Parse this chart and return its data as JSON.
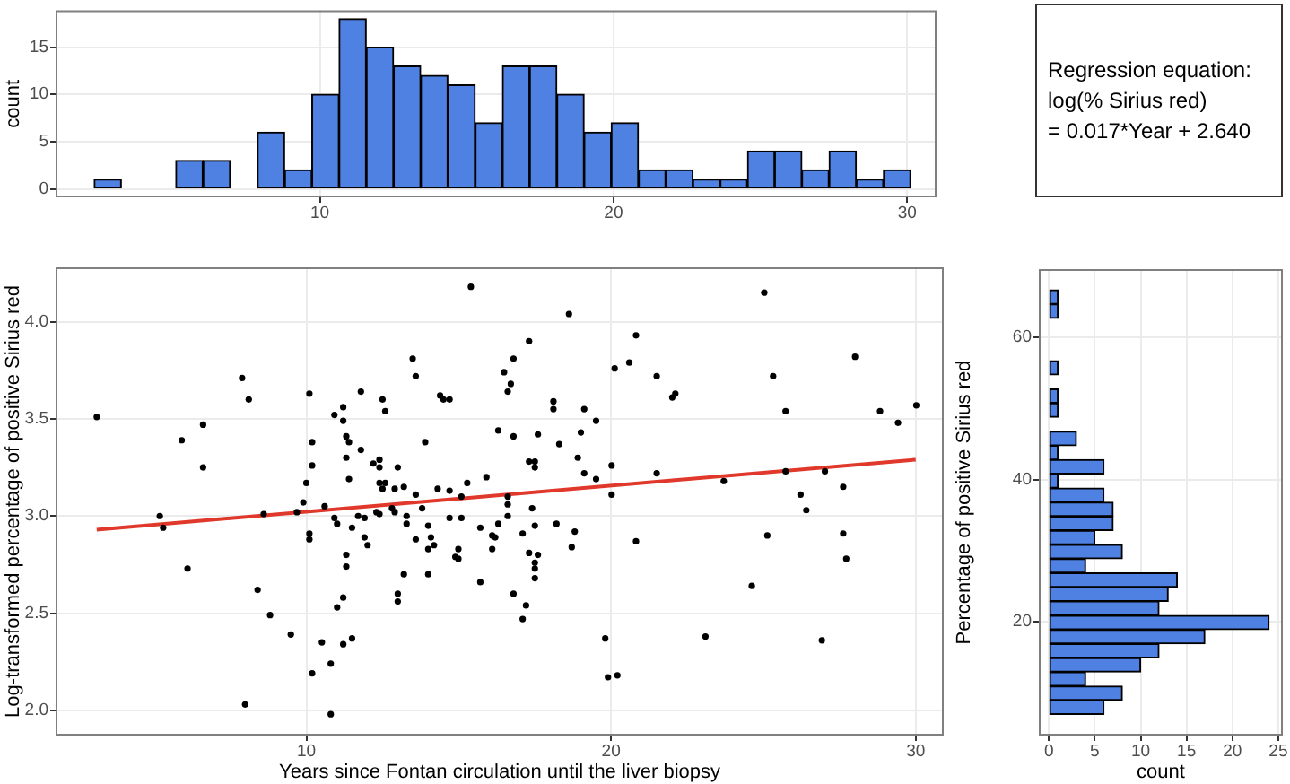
{
  "chart_data": [
    {
      "type": "histogram",
      "ylabel": "count",
      "color": "#4f81e3",
      "grid": true,
      "xlim": [
        1.0,
        31.0
      ],
      "xticks": [
        10,
        20,
        30
      ],
      "ylim": [
        -0.9,
        18.9
      ],
      "yticks": [
        0,
        5,
        10,
        15
      ],
      "bins": [
        2.31,
        3.24,
        4.16,
        5.09,
        6.02,
        6.95,
        7.87,
        8.8,
        9.73,
        10.65,
        11.58,
        12.51,
        13.43,
        14.36,
        15.29,
        16.22,
        17.14,
        18.07,
        19.0,
        19.92,
        20.85,
        21.78,
        22.7,
        23.63,
        24.56,
        25.49,
        26.41,
        27.34,
        28.27,
        29.19,
        30.12
      ],
      "values": [
        1,
        0,
        0,
        3,
        3,
        0,
        6,
        2,
        10,
        18,
        15,
        13,
        12,
        11,
        7,
        13,
        13,
        10,
        6,
        7,
        2,
        2,
        1,
        1,
        4,
        4,
        2,
        4,
        1,
        2
      ]
    },
    {
      "type": "other",
      "annotations": [
        "Regression equation:",
        "log(% Sirius red)",
        "= 0.017*Year + 2.640"
      ]
    },
    {
      "type": "scatter",
      "xlabel": "Years since Fontan circulation until the liver biopsy",
      "ylabel": "Log-transformed percentage of positive Sirius red",
      "grid": true,
      "marker": "circle",
      "xlim": [
        1.77,
        30.92
      ],
      "xticks": [
        10,
        20,
        30
      ],
      "ylim": [
        1.87,
        4.28
      ],
      "yticks": [
        {
          "value": 2,
          "label": "2.0"
        },
        {
          "value": 2.5,
          "label": "2.5"
        },
        {
          "value": 3,
          "label": "3.0"
        },
        {
          "value": 3.5,
          "label": "3.5"
        },
        {
          "value": 4,
          "label": "4.0"
        }
      ],
      "series": [
        {
          "type": "scatter",
          "color": "#000000",
          "x": [
            3.12,
            5.19,
            5.3,
            5.91,
            6.61,
            6.61,
            6.1,
            7.89,
            8.11,
            7.99,
            8.4,
            8.6,
            8.81,
            9.49,
            9.69,
            9.9,
            10.0,
            10.1,
            10.1,
            10.1,
            10.19,
            10.19,
            10.19,
            10.51,
            10.6,
            10.8,
            10.8,
            10.92,
            10.92,
            11.01,
            11.01,
            11.21,
            11.21,
            11.21,
            11.21,
            11.31,
            11.4,
            11.31,
            11.31,
            11.31,
            11.4,
            11.5,
            11.5,
            11.7,
            11.79,
            11.79,
            11.91,
            11.91,
            12.01,
            12.2,
            12.3,
            12.4,
            12.4,
            12.4,
            12.4,
            12.5,
            12.5,
            12.59,
            12.59,
            12.81,
            12.9,
            12.9,
            13.0,
            13.0,
            13.0,
            13.2,
            13.2,
            13.29,
            13.29,
            13.49,
            13.59,
            13.59,
            13.59,
            13.8,
            13.9,
            14.0,
            14.0,
            14.0,
            14.09,
            14.19,
            14.31,
            14.39,
            14.5,
            14.7,
            14.7,
            14.7,
            14.89,
            14.99,
            14.99,
            15.09,
            15.09,
            15.28,
            15.4,
            15.91,
            15.71,
            15.71,
            16.1,
            16.2,
            16.1,
            16.3,
            16.3,
            16.49,
            16.61,
            16.71,
            16.61,
            16.61,
            16.61,
            16.8,
            16.8,
            16.8,
            17.1,
            17.21,
            17.1,
            17.31,
            17.31,
            17.5,
            17.5,
            17.41,
            17.5,
            17.31,
            17.5,
            17.6,
            17.5,
            17.5,
            17.6,
            18.21,
            18.11,
            18.11,
            18.3,
            18.62,
            18.71,
            18.81,
            18.91,
            19.01,
            19.12,
            19.12,
            19.51,
            19.51,
            19.81,
            19.9,
            20.02,
            20.02,
            20.12,
            20.21,
            20.6,
            20.82,
            20.82,
            21.5,
            21.5,
            22.01,
            22.11,
            23.1,
            23.7,
            24.62,
            25.03,
            25.13,
            25.32,
            25.73,
            25.73,
            26.22,
            26.41,
            26.92,
            27.02,
            27.62,
            27.62,
            27.72,
            28.01,
            28.83,
            29.42,
            30.02
          ],
          "values": [
            3.51,
            3.0,
            2.94,
            3.39,
            3.47,
            3.25,
            2.73,
            3.71,
            3.6,
            2.03,
            2.62,
            3.01,
            2.49,
            2.39,
            3.02,
            3.07,
            3.17,
            3.63,
            2.91,
            2.88,
            3.38,
            3.26,
            2.19,
            2.35,
            3.05,
            2.24,
            1.98,
            3.52,
            2.99,
            2.96,
            2.53,
            3.56,
            3.49,
            2.58,
            2.34,
            3.41,
            3.38,
            3.3,
            2.8,
            2.74,
            3.19,
            2.94,
            2.37,
            3.0,
            3.64,
            3.34,
            2.99,
            2.89,
            2.85,
            3.27,
            3.02,
            3.29,
            3.25,
            3.17,
            3.01,
            3.6,
            3.14,
            3.54,
            3.17,
            3.04,
            3.02,
            3.14,
            3.25,
            2.6,
            2.56,
            3.15,
            2.7,
            3.0,
            2.96,
            3.81,
            3.72,
            3.11,
            2.88,
            3.04,
            3.38,
            2.95,
            2.83,
            2.7,
            2.89,
            2.85,
            3.14,
            3.62,
            3.6,
            3.6,
            3.13,
            2.99,
            2.79,
            2.78,
            2.83,
            2.99,
            3.1,
            3.17,
            4.18,
            3.2,
            2.94,
            2.66,
            2.9,
            2.89,
            2.83,
            2.96,
            3.44,
            3.74,
            3.64,
            3.68,
            3.1,
            3.06,
            3.0,
            3.81,
            3.41,
            2.6,
            2.91,
            2.54,
            2.47,
            3.9,
            3.28,
            3.28,
            3.25,
            3.04,
            2.95,
            2.81,
            2.76,
            2.8,
            2.73,
            2.68,
            3.42,
            2.96,
            3.59,
            3.55,
            3.37,
            4.04,
            2.84,
            2.92,
            3.3,
            3.43,
            3.55,
            3.22,
            3.19,
            3.49,
            2.37,
            2.17,
            3.26,
            3.11,
            3.76,
            2.18,
            3.79,
            3.93,
            2.87,
            3.72,
            3.22,
            3.61,
            3.63,
            2.38,
            3.18,
            2.64,
            4.15,
            2.9,
            3.72,
            3.54,
            3.23,
            3.11,
            3.03,
            2.36,
            3.23,
            3.15,
            2.91,
            2.78,
            3.82,
            3.54,
            3.48,
            3.57
          ]
        },
        {
          "type": "line",
          "color": "#e0382b",
          "marker": "none",
          "x": [
            3.12,
            30.0
          ],
          "values": [
            2.93,
            3.29
          ]
        }
      ]
    },
    {
      "type": "histogram",
      "orientation": "horizontal",
      "xlabel": "count",
      "ylabel": "Percentage of positive Sirius red",
      "color": "#4f81e3",
      "grid": true,
      "xlim": [
        -1.1,
        25.5
      ],
      "xticks": [
        0,
        5,
        10,
        15,
        20,
        25
      ],
      "ylim": [
        4.0,
        69.6
      ],
      "yticks": [
        20,
        40,
        60
      ],
      "bins": [
        6.97,
        8.96,
        10.95,
        12.94,
        14.93,
        16.92,
        18.91,
        20.9,
        22.89,
        24.88,
        26.87,
        28.86,
        30.85,
        32.84,
        34.83,
        36.82,
        38.81,
        40.8,
        42.79,
        44.78,
        46.77,
        48.76,
        50.75,
        52.74,
        54.73,
        56.72,
        58.71,
        60.7,
        62.69,
        64.68,
        66.67
      ],
      "values": [
        6,
        8,
        4,
        10,
        12,
        17,
        24,
        12,
        13,
        14,
        4,
        8,
        5,
        7,
        7,
        6,
        1,
        6,
        1,
        3,
        0,
        1,
        1,
        0,
        1,
        0,
        0,
        0,
        1,
        1
      ]
    }
  ]
}
